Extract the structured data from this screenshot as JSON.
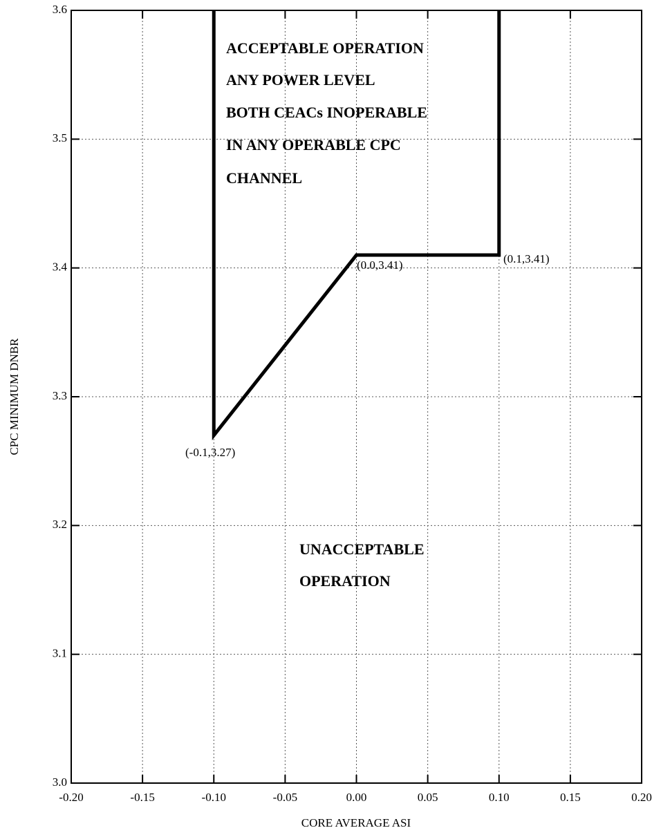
{
  "chart_data": {
    "type": "line",
    "xlabel": "CORE AVERAGE ASI",
    "ylabel": "CPC MINIMUM DNBR",
    "series": [
      {
        "name": "Acceptable operation boundary",
        "color": "#000000",
        "x": [
          -0.1,
          -0.1,
          0.0,
          0.1,
          0.1
        ],
        "values": [
          3.6,
          3.27,
          3.41,
          3.41,
          3.6
        ]
      }
    ],
    "xlim": [
      -0.2,
      0.2
    ],
    "ylim": [
      3.0,
      3.6
    ],
    "xticks": [
      {
        "value": -0.2,
        "label": "-0.20"
      },
      {
        "value": -0.15,
        "label": "-0.15"
      },
      {
        "value": -0.1,
        "label": "-0.10"
      },
      {
        "value": -0.05,
        "label": "-0.05"
      },
      {
        "value": 0,
        "label": "0.00"
      },
      {
        "value": 0.05,
        "label": "0.05"
      },
      {
        "value": 0.1,
        "label": "0.10"
      },
      {
        "value": 0.15,
        "label": "0.15"
      },
      {
        "value": 0.2,
        "label": "0.20"
      }
    ],
    "yticks": [
      {
        "value": 3,
        "label": "3.0"
      },
      3.1,
      3.2,
      3.3,
      3.4,
      3.5,
      3.6
    ],
    "grid": true,
    "annotations": [
      "ACCEPTABLE OPERATION",
      "ANY POWER LEVEL",
      "BOTH CEACs INOPERABLE",
      "IN ANY OPERABLE CPC",
      "CHANNEL",
      "UNACCEPTABLE",
      "OPERATION",
      "(0.0,3.41)",
      "(0.1,3.41)",
      "(-0.1,3.27)"
    ]
  }
}
